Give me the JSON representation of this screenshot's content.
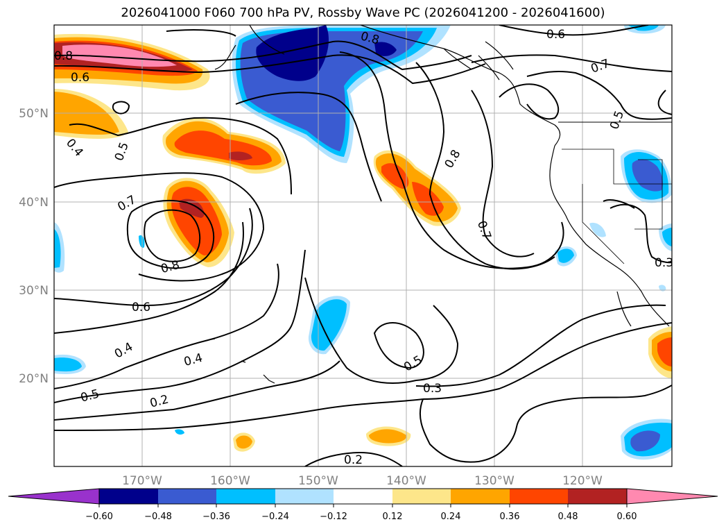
{
  "title": "2026041000 F060 700 hPa PV, Rossby Wave PC (2026041200 - 2026041600)",
  "axes": {
    "lon_labels": [
      "170°W",
      "160°W",
      "150°W",
      "140°W",
      "130°W",
      "120°W"
    ],
    "lat_labels": [
      "50°N",
      "40°N",
      "30°N",
      "20°N"
    ]
  },
  "contour_labels": [
    "0.8",
    "0.6",
    "0.4",
    "0.5",
    "0.7",
    "0.8",
    "0.6",
    "0.4",
    "0.4",
    "0.5",
    "0.2",
    "0.8",
    "0.6",
    "0.7",
    "0.8",
    "0.7",
    "0.5",
    "0.3",
    "0.5",
    "0.3",
    "0.2"
  ],
  "colorbar": {
    "ticks": [
      "−0.60",
      "−0.48",
      "−0.36",
      "−0.24",
      "−0.12",
      "0.12",
      "0.24",
      "0.36",
      "0.48",
      "0.60"
    ],
    "colors": [
      "#9932cc",
      "#00008b",
      "#3a5bd1",
      "#00bfff",
      "#b0e2ff",
      "#ffffff",
      "#fde68a",
      "#ffa500",
      "#ff4500",
      "#b22222",
      "#ff89b0"
    ]
  },
  "legend": {
    "colors": {
      "pink": "#ff89b0",
      "darkred": "#b22222",
      "red": "#ff4500",
      "orange": "#ffa500",
      "yellow": "#fde68a",
      "lightblue": "#b0e2ff",
      "cyan": "#00bfff",
      "blue": "#3a5bd1",
      "navy": "#00008b"
    }
  }
}
